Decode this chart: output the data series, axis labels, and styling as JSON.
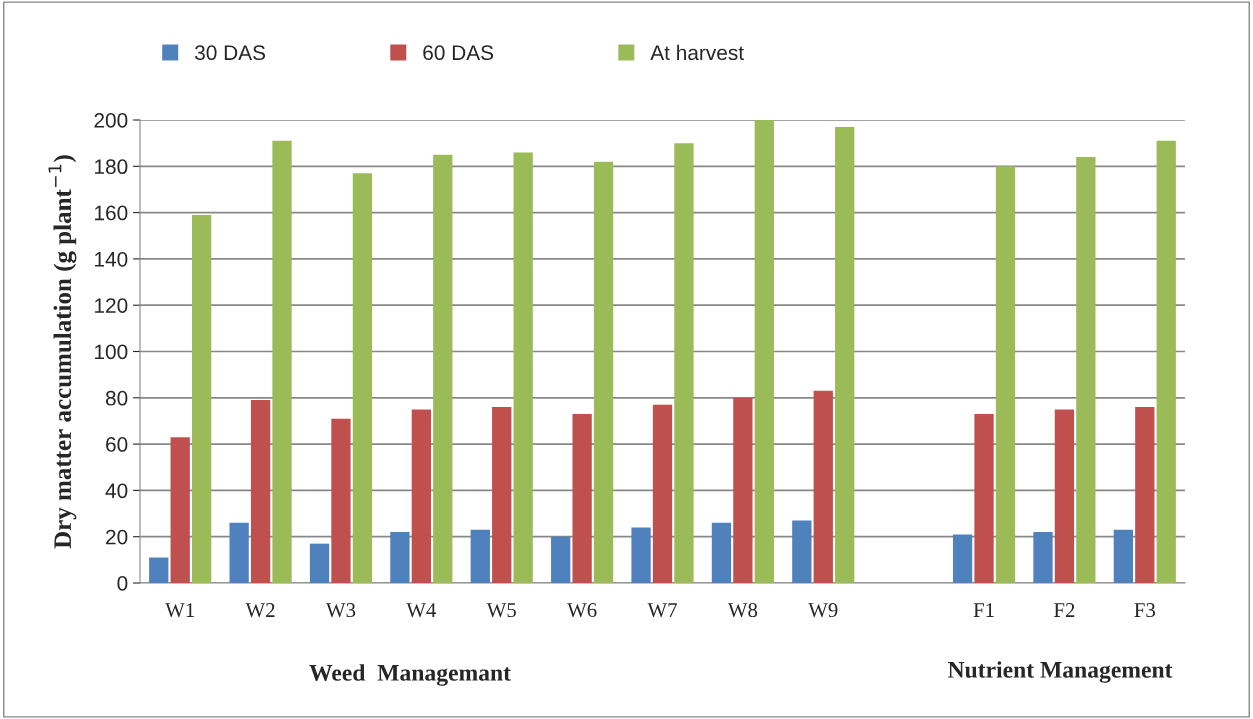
{
  "chart_data": {
    "type": "bar",
    "ylabel": "Dry matter accumulation (g plant$^{−1}$)",
    "categories": [
      "W1",
      "W2",
      "W3",
      "W4",
      "W5",
      "W6",
      "W7",
      "W8",
      "W9",
      null,
      "F1",
      "F2",
      "F3"
    ],
    "series": [
      {
        "name": "30 DAS",
        "color": "#4f81bd",
        "values": [
          11,
          26,
          17,
          22,
          23,
          20,
          24,
          26,
          27,
          null,
          21,
          22,
          23
        ]
      },
      {
        "name": "60 DAS",
        "color": "#c0504d",
        "values": [
          63,
          79,
          71,
          75,
          76,
          73,
          77,
          80,
          83,
          null,
          73,
          75,
          76
        ]
      },
      {
        "name": "At harvest",
        "color": "#9bbb59",
        "values": [
          159,
          191,
          177,
          185,
          186,
          182,
          190,
          200,
          197,
          null,
          180,
          184,
          191
        ]
      }
    ],
    "ylim": [
      0,
      200
    ],
    "yticks": [
      0,
      20,
      40,
      60,
      80,
      100,
      120,
      140,
      160,
      180,
      200
    ],
    "grid": "y",
    "legend": "top",
    "annotations": [
      "Weed  Managemant",
      "Nutrient Management"
    ]
  }
}
